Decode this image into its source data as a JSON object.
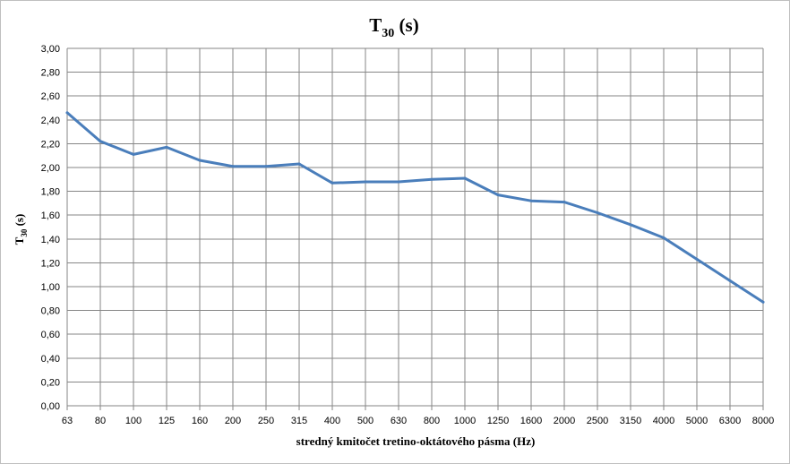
{
  "chart_data": {
    "type": "line",
    "title": "T30 (s)",
    "title_main": "T",
    "title_sub": "30",
    "title_unit": " (s)",
    "xlabel": "stredný kmitočet tretino-oktátového pásma (Hz)",
    "ylabel": "T30 (s)",
    "ylabel_main": "T",
    "ylabel_sub": "30",
    "ylabel_unit": " (s)",
    "ylim": [
      0,
      3
    ],
    "grid": true,
    "legend": "none",
    "yticks": [
      0,
      0.2,
      0.4,
      0.6,
      0.8,
      1.0,
      1.2,
      1.4,
      1.6,
      1.8,
      2.0,
      2.2,
      2.4,
      2.6,
      2.8,
      3.0
    ],
    "ytick_labels": [
      "0,00",
      "0,20",
      "0,40",
      "0,60",
      "0,80",
      "1,00",
      "1,20",
      "1,40",
      "1,60",
      "1,80",
      "2,00",
      "2,20",
      "2,40",
      "2,60",
      "2,80",
      "3,00"
    ],
    "categories": [
      "63",
      "80",
      "100",
      "125",
      "160",
      "200",
      "250",
      "315",
      "400",
      "500",
      "630",
      "800",
      "1000",
      "1250",
      "1600",
      "2000",
      "2500",
      "3150",
      "4000",
      "5000",
      "6300",
      "8000"
    ],
    "series": [
      {
        "color": "#4a7ebb",
        "values": [
          2.46,
          2.22,
          2.11,
          2.17,
          2.06,
          2.01,
          2.01,
          2.03,
          1.87,
          1.88,
          1.88,
          1.9,
          1.91,
          1.77,
          1.72,
          1.71,
          1.62,
          1.52,
          1.41,
          1.23,
          1.05,
          0.87
        ]
      }
    ]
  }
}
